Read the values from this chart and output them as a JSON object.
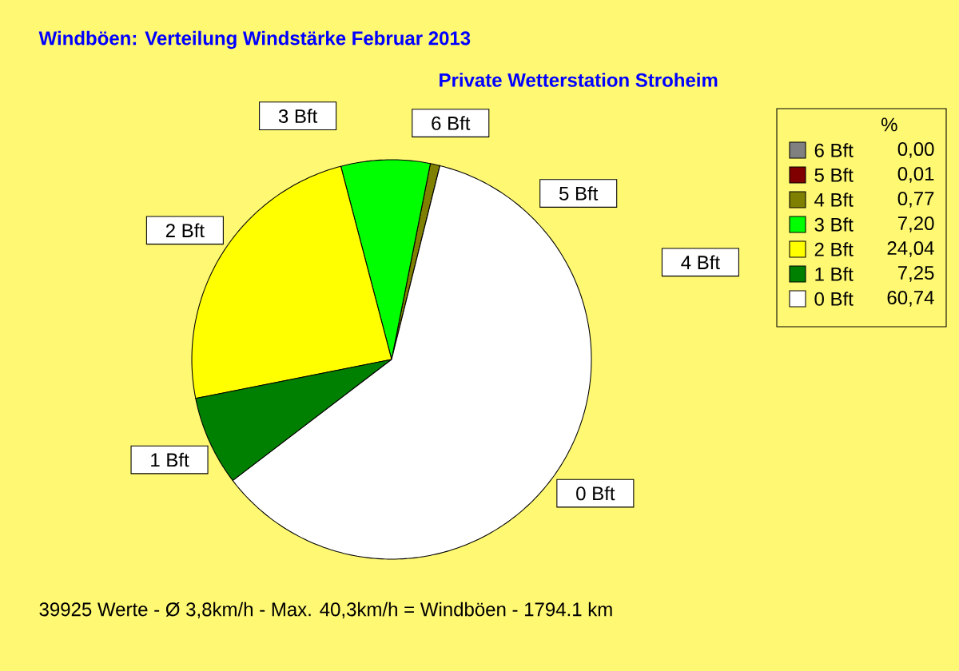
{
  "chart_data": {
    "type": "pie",
    "title": "Windböen: Verteilung Windstärke  Februar 2013",
    "subtitle": "Private Wetterstation Stroheim",
    "categories": [
      "6 Bft",
      "5 Bft",
      "4 Bft",
      "3 Bft",
      "2 Bft",
      "1 Bft",
      "0 Bft"
    ],
    "values": [
      0.0,
      0.01,
      0.77,
      7.2,
      24.04,
      7.25,
      60.74
    ],
    "colors": [
      "#808080",
      "#800000",
      "#808000",
      "#00ff00",
      "#ffff00",
      "#008000",
      "#ffffff"
    ],
    "legend": "right",
    "legend_title": "%",
    "value_labels": [
      "0,00",
      "0,01",
      "0,77",
      "7,20",
      "24,04",
      "7,25",
      "60,74"
    ],
    "annotations": [
      "39925 Werte   -   Ø 3,8km/h   -   Max. 40,3km/h = Windböen   -   1794.1 km"
    ]
  }
}
